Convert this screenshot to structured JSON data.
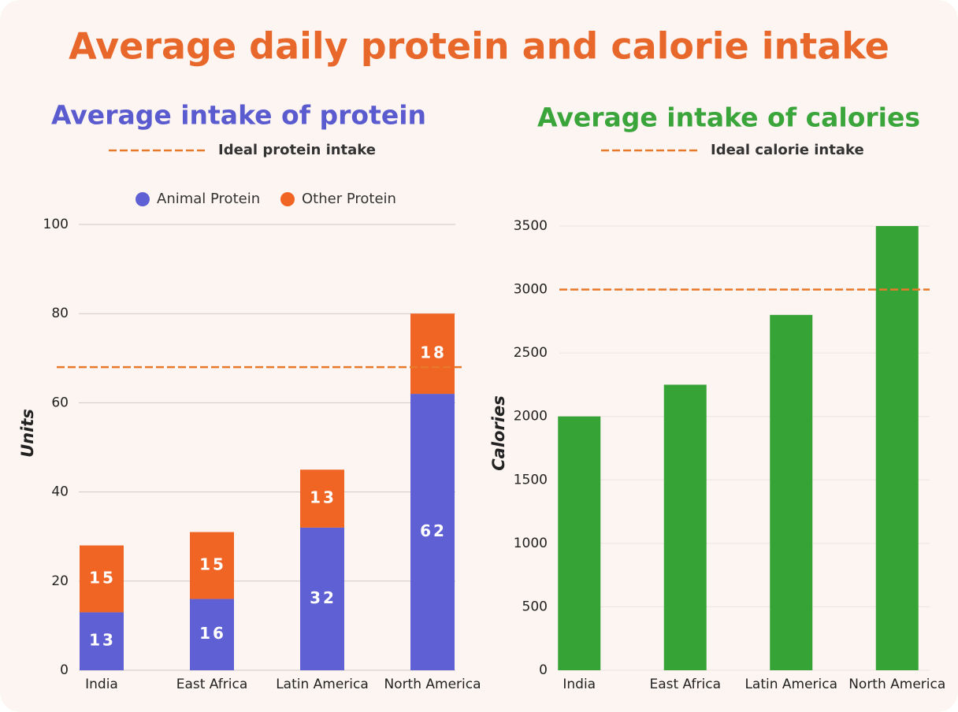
{
  "title": "Average daily protein and calorie intake",
  "chart_data": [
    {
      "type": "stacked_bar",
      "title": "Average intake of protein",
      "categories": [
        "India",
        "East Africa",
        "Latin America",
        "North America"
      ],
      "series": [
        {
          "name": "Animal Protein",
          "color": "#5f60d4",
          "values": [
            13,
            16,
            32,
            62
          ]
        },
        {
          "name": "Other Protein",
          "color": "#f06424",
          "values": [
            15,
            15,
            13,
            18
          ]
        }
      ],
      "y_label": "Units",
      "ylim": [
        0,
        100
      ],
      "yticks": [
        0,
        20,
        40,
        60,
        80,
        100
      ],
      "grid": true,
      "legend": "top",
      "title_color": "#5b5bd0",
      "reference_line": {
        "value": 68,
        "label": "Ideal protein intake",
        "color": "#e8782a"
      }
    },
    {
      "type": "bar",
      "title": "Average intake of calories",
      "categories": [
        "India",
        "East Africa",
        "Latin America",
        "North America"
      ],
      "values": [
        2000,
        2250,
        2800,
        3500
      ],
      "color": "#36a336",
      "y_label": "Calories",
      "ylim": [
        0,
        3500
      ],
      "yticks": [
        0,
        500,
        1000,
        1500,
        2000,
        2500,
        3000,
        3500
      ],
      "grid": true,
      "title_color": "#3aa53a",
      "reference_line": {
        "value": 3000,
        "label": "Ideal calorie intake",
        "color": "#e8782a"
      }
    }
  ]
}
